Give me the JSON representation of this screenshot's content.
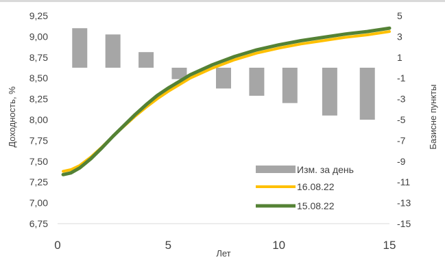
{
  "chart_data": {
    "type": "bar+line",
    "title": "",
    "xlabel": "Лет",
    "ylabel": "Доходность, %",
    "y2label": "Базисне пункты",
    "xlim": [
      0,
      15
    ],
    "ylim": [
      6.75,
      9.25
    ],
    "y2lim": [
      -15,
      5
    ],
    "x_ticks": [
      "0",
      "5",
      "10",
      "15"
    ],
    "y_ticks": [
      "6,75",
      "7,00",
      "7,25",
      "7,50",
      "7,75",
      "8,00",
      "8,25",
      "8,50",
      "8,75",
      "9,00",
      "9,25"
    ],
    "y2_ticks": [
      "-15",
      "-13",
      "-11",
      "-9",
      "-7",
      "-5",
      "-3",
      "-1",
      "1",
      "3",
      "5"
    ],
    "legend_position": "bottom-right",
    "grid": false,
    "bars": {
      "name": "Изм. за день",
      "color": "#a6a6a6",
      "x": [
        1,
        2.5,
        4,
        5.5,
        7.5,
        9,
        10.5,
        12.3,
        14
      ],
      "values": [
        3.8,
        3.2,
        1.5,
        -1.1,
        -2.0,
        -2.7,
        -3.4,
        -4.6,
        -5.0
      ]
    },
    "series": [
      {
        "name": "16.08.22",
        "color": "#ffc000",
        "x": [
          0.25,
          0.6,
          1,
          1.5,
          2,
          2.5,
          3,
          3.5,
          4,
          4.5,
          5,
          5.5,
          6,
          7,
          8,
          9,
          10,
          11,
          12,
          13,
          14,
          15
        ],
        "values": [
          7.38,
          7.4,
          7.45,
          7.55,
          7.67,
          7.8,
          7.92,
          8.04,
          8.15,
          8.25,
          8.34,
          8.42,
          8.5,
          8.62,
          8.72,
          8.8,
          8.86,
          8.91,
          8.95,
          8.99,
          9.02,
          9.06
        ]
      },
      {
        "name": "15.08.22",
        "color": "#548235",
        "x": [
          0.25,
          0.6,
          1,
          1.5,
          2,
          2.5,
          3,
          3.5,
          4,
          4.5,
          5,
          5.5,
          6,
          7,
          8,
          9,
          10,
          11,
          12,
          13,
          14,
          15
        ],
        "values": [
          7.34,
          7.36,
          7.42,
          7.53,
          7.66,
          7.8,
          7.93,
          8.06,
          8.18,
          8.29,
          8.38,
          8.46,
          8.54,
          8.66,
          8.76,
          8.84,
          8.9,
          8.95,
          8.99,
          9.03,
          9.06,
          9.1
        ]
      }
    ]
  }
}
